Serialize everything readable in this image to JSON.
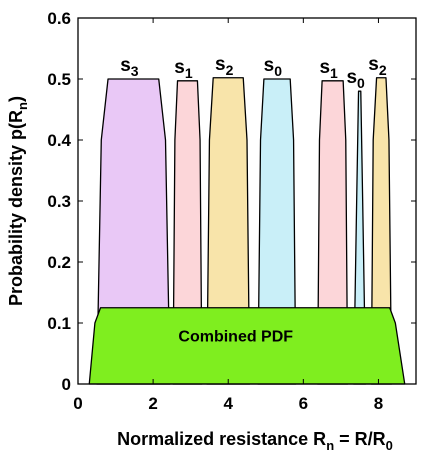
{
  "chart_data": {
    "type": "area",
    "xlabel": [
      {
        "text": "Normalized resistance R"
      },
      {
        "text": "n",
        "sub": true
      },
      {
        "text": " = R/R"
      },
      {
        "text": "0",
        "sub": true
      }
    ],
    "ylabel": [
      {
        "text": "Probability density p(R"
      },
      {
        "text": "n",
        "sub": true
      },
      {
        "text": ")"
      }
    ],
    "xlim": [
      0,
      9
    ],
    "xticks": [
      0,
      2,
      4,
      6,
      8
    ],
    "ylim": [
      0,
      0.6
    ],
    "yticks": [
      0,
      0.1,
      0.2,
      0.3,
      0.4,
      0.5,
      0.6
    ],
    "series": [
      {
        "name": "s",
        "subscript": "3",
        "color": "#e9c8f6",
        "x": [
          0.5,
          0.62,
          0.8,
          2.15,
          2.33,
          2.45
        ],
        "values": [
          0,
          0.4,
          0.5,
          0.5,
          0.4,
          0
        ]
      },
      {
        "name": "s",
        "subscript": "1",
        "color": "#fcd6d9",
        "x": [
          2.53,
          2.58,
          2.65,
          3.18,
          3.25,
          3.3
        ],
        "values": [
          0,
          0.4,
          0.497,
          0.497,
          0.4,
          0
        ]
      },
      {
        "name": "s",
        "subscript": "2",
        "color": "#f8e4aa",
        "x": [
          3.43,
          3.5,
          3.6,
          4.4,
          4.5,
          4.57
        ],
        "values": [
          0,
          0.4,
          0.502,
          0.502,
          0.4,
          0
        ]
      },
      {
        "name": "s",
        "subscript": "0",
        "color": "#c9eff8",
        "x": [
          4.79,
          4.86,
          4.95,
          5.65,
          5.74,
          5.8
        ],
        "values": [
          0,
          0.4,
          0.5,
          0.5,
          0.4,
          0
        ]
      },
      {
        "name": "s",
        "subscript": "1",
        "color": "#fcd6d9",
        "x": [
          6.38,
          6.43,
          6.5,
          7.06,
          7.13,
          7.18
        ],
        "values": [
          0,
          0.4,
          0.497,
          0.497,
          0.4,
          0
        ]
      },
      {
        "name": "s",
        "subscript": "0",
        "color": "#c9eff8",
        "x": [
          7.34,
          7.42,
          7.47,
          7.53,
          7.58,
          7.66
        ],
        "values": [
          0,
          0.3,
          0.48,
          0.48,
          0.3,
          0
        ]
      },
      {
        "name": "s",
        "subscript": "2",
        "color": "#f8e4aa",
        "x": [
          7.81,
          7.86,
          7.95,
          8.2,
          8.28,
          8.35
        ],
        "values": [
          0,
          0.4,
          0.502,
          0.502,
          0.4,
          0
        ]
      }
    ],
    "combined": {
      "name": "Combined PDF",
      "color": "#7fee1f",
      "x": [
        0.3,
        0.45,
        0.6,
        8.3,
        8.45,
        8.7
      ],
      "values": [
        0,
        0.1,
        0.125,
        0.125,
        0.1,
        0
      ]
    }
  }
}
